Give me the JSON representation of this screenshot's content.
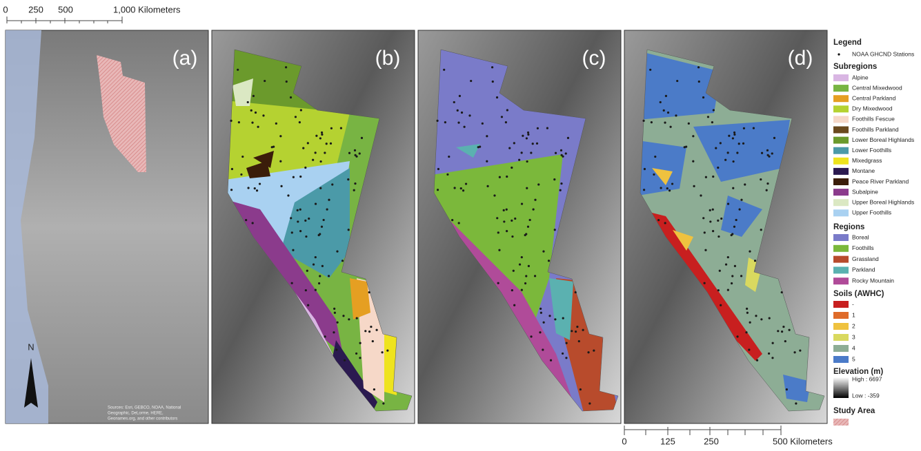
{
  "scale_top": {
    "ticks": [
      "0",
      "250",
      "500"
    ],
    "unit": "1,000 Kilometers"
  },
  "scale_bottom": {
    "ticks": [
      "0",
      "125",
      "250"
    ],
    "unit": "500 Kilometers"
  },
  "panels": [
    "(a)",
    "(b)",
    "(c)",
    "(d)"
  ],
  "north": "N",
  "attribution": [
    "Sources: Esri, GEBCO, NOAA, National",
    "Geographic, DeLorme, HERE,",
    "Geonames.org, and other contributors"
  ],
  "legend": {
    "title": "Legend",
    "stations": "NOAA GHCND Stations",
    "subregions": {
      "title": "Subregions",
      "items": [
        {
          "label": "Alpine",
          "color": "#d9b6e3"
        },
        {
          "label": "Central Mixedwood",
          "color": "#78b443"
        },
        {
          "label": "Central Parkland",
          "color": "#e59f22"
        },
        {
          "label": "Dry Mixedwood",
          "color": "#b5d231"
        },
        {
          "label": "Foothills Fescue",
          "color": "#f6d8c8"
        },
        {
          "label": "Foothills Parkland",
          "color": "#6a4a1e"
        },
        {
          "label": "Lower Boreal Highlands",
          "color": "#6b9a2c"
        },
        {
          "label": "Lower Foothills",
          "color": "#4b9aa8"
        },
        {
          "label": "Mixedgrass",
          "color": "#eee31e"
        },
        {
          "label": "Montane",
          "color": "#2b1a50"
        },
        {
          "label": "Peace River Parkland",
          "color": "#3b1d0a"
        },
        {
          "label": "Subalpine",
          "color": "#8b3b8c"
        },
        {
          "label": "Upper Boreal Highlands",
          "color": "#dbe8c3"
        },
        {
          "label": "Upper Foothills",
          "color": "#a9d1f1"
        }
      ]
    },
    "regions": {
      "title": "Regions",
      "items": [
        {
          "label": "Boreal",
          "color": "#7a7bc9"
        },
        {
          "label": "Foothills",
          "color": "#7bb83b"
        },
        {
          "label": "Grassland",
          "color": "#b84b2c"
        },
        {
          "label": "Parkland",
          "color": "#5bb1b0"
        },
        {
          "label": "Rocky Mountain",
          "color": "#b04b99"
        }
      ]
    },
    "soils": {
      "title": "Soils (AWHC)",
      "items": [
        {
          "label": "-",
          "color": "#c81f1f"
        },
        {
          "label": "1",
          "color": "#df6b29"
        },
        {
          "label": "2",
          "color": "#efc23f"
        },
        {
          "label": "3",
          "color": "#d9d95f"
        },
        {
          "label": "4",
          "color": "#8dad95"
        },
        {
          "label": "5",
          "color": "#4b7bc8"
        }
      ]
    },
    "elevation": {
      "title": "Elevation (m)",
      "high": "High : 6697",
      "low": "Low : -359"
    },
    "study_area": "Study Area"
  }
}
